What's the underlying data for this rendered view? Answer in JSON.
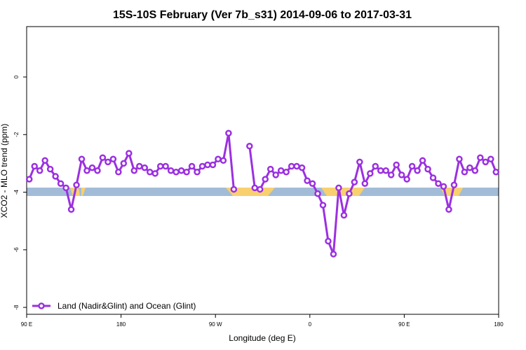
{
  "chart_data": {
    "type": "line",
    "title": "15S-10S February (Ver 7b_s31)   2014-09-06 to 2017-03-31",
    "x_label": "Longitude (deg E)",
    "y_label": "XCO2 - MLO trend (ppm)",
    "x": [
      92.5,
      97.5,
      102.5,
      107.5,
      112.5,
      117.5,
      122.5,
      127.5,
      132.5,
      137.5,
      142.5,
      147.5,
      152.5,
      157.5,
      162.5,
      167.5,
      172.5,
      177.5,
      182.5,
      187.5,
      192.5,
      197.5,
      202.5,
      207.5,
      212.5,
      217.5,
      222.5,
      227.5,
      232.5,
      237.5,
      242.5,
      247.5,
      252.5,
      257.5,
      262.5,
      267.5,
      272.5,
      277.5,
      282.5,
      287.5,
      292.5,
      297.5,
      302.5,
      307.5,
      312.5,
      317.5,
      322.5,
      327.5,
      332.5,
      337.5,
      342.5,
      347.5,
      352.5,
      357.5,
      362.5,
      367.5,
      372.5,
      377.5,
      382.5,
      387.5,
      392.5,
      397.5,
      402.5,
      407.5,
      412.5,
      417.5,
      422.5,
      427.5,
      432.5,
      437.5,
      442.5,
      447.5,
      452.5,
      457.5,
      462.5,
      467.5,
      472.5,
      477.5,
      482.5,
      487.5,
      492.5,
      497.5,
      502.5,
      507.5,
      512.5,
      517.5,
      522.5,
      527.5,
      532.5,
      537.5
    ],
    "series": [
      {
        "name": "Land (Nadir&Glint) and Ocean (Glint)",
        "color": "#9b30e0",
        "values": [
          -3.55,
          -3.1,
          -3.25,
          -2.9,
          -3.2,
          -3.45,
          -3.7,
          -3.85,
          -4.6,
          -3.75,
          -2.85,
          -3.25,
          -3.15,
          -3.25,
          -2.8,
          -2.95,
          -2.85,
          -3.3,
          -3.0,
          -2.65,
          -3.25,
          -3.1,
          -3.15,
          -3.3,
          -3.35,
          -3.1,
          -3.1,
          -3.25,
          -3.3,
          -3.25,
          -3.3,
          -3.1,
          -3.3,
          -3.1,
          -3.05,
          -3.05,
          -2.85,
          -2.9,
          -1.95,
          -3.9,
          null,
          null,
          -2.4,
          -3.85,
          -3.9,
          -3.55,
          -3.2,
          -3.4,
          -3.25,
          -3.3,
          -3.1,
          -3.1,
          -3.15,
          -3.6,
          -3.7,
          -4.05,
          -4.45,
          -5.7,
          -6.15,
          -3.85,
          -4.8,
          -4.05,
          -3.65,
          -2.95,
          -3.7,
          -3.35,
          -3.1,
          -3.25,
          -3.25,
          -3.4,
          -3.05,
          -3.4,
          -3.55,
          -3.1,
          -3.25,
          -2.9,
          -3.2,
          -3.5,
          -3.7,
          -3.8,
          -4.6,
          -3.75,
          -2.85,
          -3.3,
          -3.15,
          -3.25,
          -2.8,
          -2.95,
          -2.85,
          -3.3
        ]
      }
    ],
    "xlim": [
      90,
      540
    ],
    "xticks": [
      {
        "value": 90,
        "label": "90 E"
      },
      180,
      {
        "value": 270,
        "label": "90 W"
      },
      {
        "value": 360,
        "label": "0"
      },
      {
        "value": 450,
        "label": "90 E"
      },
      {
        "value": 540,
        "label": "180"
      }
    ],
    "ylim": [
      -8.24,
      1.75
    ],
    "yticks": [
      0,
      -2,
      -4,
      -6,
      -8
    ],
    "legend": "lower left"
  }
}
